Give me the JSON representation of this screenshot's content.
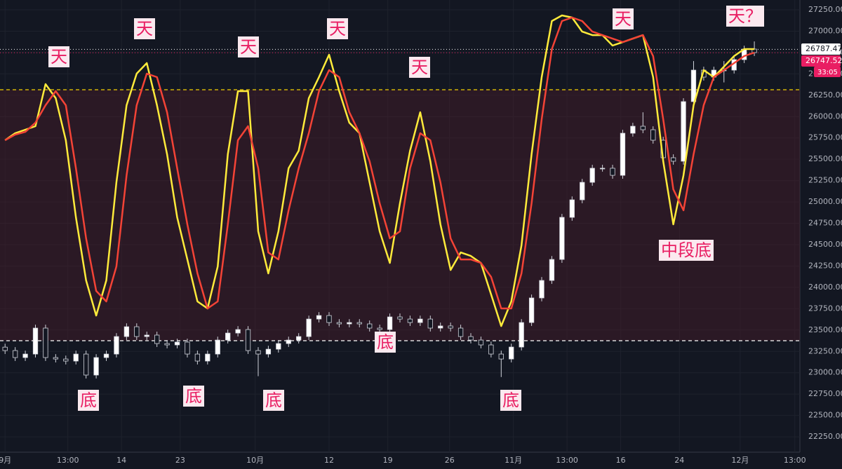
{
  "chart_data": {
    "type": "candlestick",
    "open": [
      23300,
      23260,
      23178,
      23219,
      23523,
      23178,
      23161,
      23137,
      23219,
      22973,
      23178,
      23219,
      23424,
      23539,
      23424,
      23441,
      23342,
      23326,
      23359,
      23219,
      23137,
      23219,
      23383,
      23465,
      23506,
      23260,
      23219,
      23276,
      23342,
      23383,
      23424,
      23629,
      23670,
      23588,
      23572,
      23588,
      23572,
      23523,
      23506,
      23654,
      23629,
      23588,
      23629,
      23523,
      23548,
      23523,
      23424,
      23383,
      23326,
      23219,
      23161,
      23301,
      23588,
      23876,
      24081,
      24327,
      24820,
      25025,
      25230,
      25395,
      25395,
      25312,
      25805,
      25887,
      25846,
      25723,
      25518,
      25477,
      26175,
      26544,
      26462,
      26544,
      26544,
      26667,
      26790
    ],
    "high": [
      23340,
      23300,
      23259,
      23563,
      23563,
      23218,
      23201,
      23259,
      23259,
      23218,
      23259,
      23464,
      23579,
      23579,
      23481,
      23481,
      23382,
      23399,
      23399,
      23259,
      23259,
      23423,
      23505,
      23546,
      23546,
      23300,
      23316,
      23382,
      23423,
      23464,
      23669,
      23710,
      23710,
      23628,
      23628,
      23628,
      23612,
      23563,
      23694,
      23694,
      23669,
      23669,
      23669,
      23588,
      23588,
      23563,
      23464,
      23423,
      23366,
      23259,
      23341,
      23628,
      23916,
      24121,
      24367,
      24860,
      25065,
      25270,
      25435,
      25435,
      25435,
      25845,
      25927,
      26050,
      25886,
      25763,
      25558,
      26215,
      26650,
      26584,
      26584,
      26650,
      26707,
      26830,
      26880
    ],
    "low": [
      23220,
      23138,
      23138,
      23179,
      23138,
      23121,
      23097,
      23097,
      22933,
      22933,
      23138,
      23179,
      23384,
      23384,
      23384,
      23302,
      23286,
      23286,
      23179,
      23097,
      23097,
      23179,
      23343,
      23425,
      23220,
      22960,
      23179,
      23236,
      23302,
      23343,
      23384,
      23589,
      23548,
      23532,
      23532,
      23532,
      23483,
      23466,
      23466,
      23589,
      23548,
      23548,
      23483,
      23483,
      23483,
      23384,
      23343,
      23286,
      23179,
      22950,
      23121,
      23261,
      23548,
      23836,
      24041,
      24287,
      24780,
      24985,
      25190,
      25355,
      25272,
      25272,
      25765,
      25806,
      25683,
      25478,
      25437,
      25437,
      26135,
      26422,
      26422,
      26400,
      26504,
      26627,
      26709
    ],
    "close": [
      23260,
      23178,
      23219,
      23523,
      23178,
      23161,
      23137,
      23219,
      22973,
      23178,
      23219,
      23424,
      23539,
      23424,
      23441,
      23342,
      23326,
      23359,
      23219,
      23137,
      23219,
      23383,
      23465,
      23506,
      23260,
      23219,
      23276,
      23342,
      23383,
      23424,
      23629,
      23670,
      23588,
      23572,
      23588,
      23572,
      23523,
      23506,
      23654,
      23629,
      23588,
      23629,
      23523,
      23548,
      23523,
      23424,
      23383,
      23326,
      23219,
      23161,
      23301,
      23588,
      23876,
      24081,
      24327,
      24820,
      25025,
      25230,
      25395,
      25395,
      25312,
      25805,
      25887,
      25846,
      25723,
      25518,
      25477,
      26175,
      26544,
      26462,
      26544,
      26544,
      26667,
      26790,
      26749
    ],
    "up_color": "#ffffff",
    "down_color": "#131722",
    "series": [
      {
        "color": "#ffeb3b",
        "values": [
          25723,
          25805,
          25846,
          25887,
          26380,
          26216,
          25723,
          24820,
          24081,
          23670,
          24081,
          25230,
          26133,
          26503,
          26626,
          26133,
          25559,
          24820,
          24327,
          23835,
          23753,
          24245,
          25559,
          26298,
          26298,
          24656,
          24163,
          24656,
          25395,
          25600,
          26216,
          26462,
          26725,
          26298,
          25928,
          25805,
          25230,
          24656,
          24286,
          24984,
          25600,
          26051,
          25477,
          24738,
          24204,
          24409,
          24368,
          24286,
          23917,
          23547,
          23835,
          24491,
          25559,
          26462,
          27119,
          27184,
          27160,
          26995,
          26954,
          26954,
          26831,
          26872,
          26913,
          26954,
          26462,
          25477,
          24738,
          25312,
          26133,
          26544,
          26462,
          26585,
          26708,
          26790,
          26790
        ]
      },
      {
        "color": "#f44336",
        "values": [
          25723,
          25789,
          25821,
          25928,
          26133,
          26298,
          26133,
          25395,
          24574,
          23958,
          23835,
          24245,
          25312,
          26133,
          26503,
          26462,
          26051,
          25395,
          24738,
          24163,
          23753,
          23835,
          24738,
          25723,
          25887,
          25395,
          24409,
          24327,
          24902,
          25395,
          25805,
          26298,
          26544,
          26462,
          26051,
          25805,
          25477,
          24984,
          24574,
          24656,
          25395,
          25805,
          25723,
          25230,
          24574,
          24327,
          24327,
          24286,
          24122,
          23753,
          23753,
          24163,
          24984,
          25969,
          26790,
          27119,
          27160,
          27119,
          26995,
          26954,
          26913,
          26872,
          26913,
          26954,
          26708,
          25969,
          25148,
          24902,
          25559,
          26133,
          26462,
          26544,
          26626,
          26708,
          26749
        ]
      }
    ],
    "levels": [
      {
        "value": 26314,
        "color": "#f0d000"
      },
      {
        "value": 23375,
        "color": "#ffffff"
      }
    ],
    "price_labels": [
      {
        "value": 26787.47,
        "color": "#ffffff",
        "text_color": "#131722"
      },
      {
        "value": 26747.52,
        "color": "#e91e63",
        "text_color": "#ffffff"
      }
    ],
    "countdown": "33:05",
    "annotations": [
      "天",
      "天",
      "天",
      "天",
      "天",
      "天",
      "天？",
      "底",
      "底",
      "底",
      "底",
      "底",
      "中段底"
    ],
    "annotation_color": "#e91e63",
    "xlim": [
      -0.5,
      78.5
    ],
    "xticks": [
      {
        "value": 0,
        "label": "9月"
      },
      {
        "value": 6.2,
        "label": "13:00"
      },
      {
        "value": 11.5,
        "label": "14"
      },
      {
        "value": 17.3,
        "label": "23"
      },
      {
        "value": 24.7,
        "label": "10月"
      },
      {
        "value": 32,
        "label": "12"
      },
      {
        "value": 37.8,
        "label": "19"
      },
      {
        "value": 43.9,
        "label": "26"
      },
      {
        "value": 50.2,
        "label": "11月"
      },
      {
        "value": 55.5,
        "label": "13:00"
      },
      {
        "value": 60.8,
        "label": "16"
      },
      {
        "value": 66.6,
        "label": "24"
      },
      {
        "value": 72.6,
        "label": "12月"
      },
      {
        "value": 78,
        "label": "13:00"
      }
    ],
    "ylim": [
      22070,
      27365
    ],
    "yticks": [
      {
        "value": 22250,
        "label": "22250.00"
      },
      {
        "value": 22500,
        "label": "22500.00"
      },
      {
        "value": 22750,
        "label": "22750.00"
      },
      {
        "value": 23000,
        "label": "23000.00"
      },
      {
        "value": 23250,
        "label": "23250.00"
      },
      {
        "value": 23500,
        "label": "23500.00"
      },
      {
        "value": 23750,
        "label": "23750.00"
      },
      {
        "value": 24000,
        "label": "24000.00"
      },
      {
        "value": 24250,
        "label": "24250.00"
      },
      {
        "value": 24500,
        "label": "24500.00"
      },
      {
        "value": 24750,
        "label": "24750.00"
      },
      {
        "value": 25000,
        "label": "25000.00"
      },
      {
        "value": 25250,
        "label": "25250.00"
      },
      {
        "value": 25500,
        "label": "25500.00"
      },
      {
        "value": 25750,
        "label": "25750.00"
      },
      {
        "value": 26000,
        "label": "26000.00"
      },
      {
        "value": 26250,
        "label": "26250.00"
      },
      {
        "value": 26500,
        "label": "26500.00"
      },
      {
        "value": 26750,
        "label": "26750.00"
      },
      {
        "value": 27000,
        "label": "27000.00"
      },
      {
        "value": 27250,
        "label": "27250.00"
      }
    ],
    "grid": true
  }
}
